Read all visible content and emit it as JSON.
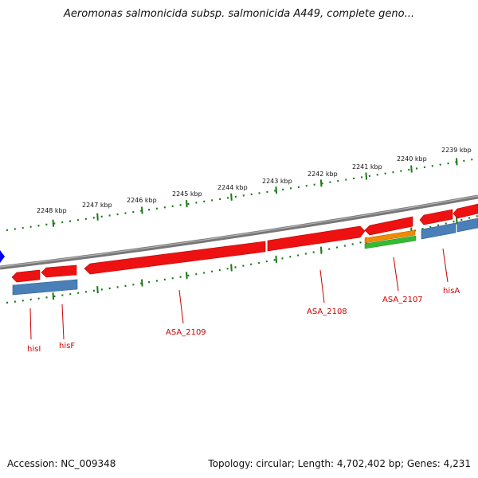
{
  "title": "Aeromonas salmonicida subsp. salmonicida A449, complete geno...",
  "footer": {
    "accession": "Accession: NC_009348",
    "topology": "Topology: circular; Length: 4,702,402 bp; Genes: 4,231"
  },
  "colors": {
    "backbone": "#7d7d7d",
    "tick": "#1a7a1a",
    "gene_red": "#ee1111",
    "gene_blue": "#4a7fb8",
    "gene_orange": "#f08a00",
    "gene_green": "#33bb33",
    "label": "#cc0000",
    "marker": "#0000ee"
  },
  "kbp_labels": [
    "2248 kbp",
    "2247 kbp",
    "2246 kbp",
    "2245 kbp",
    "2244 kbp",
    "2243 kbp",
    "2242 kbp",
    "2241 kbp",
    "2240 kbp",
    "2239 kbp"
  ],
  "gene_labels": [
    "hisI",
    "hisF",
    "ASA_2109",
    "ASA_2108",
    "ASA_2107",
    "hisA"
  ]
}
